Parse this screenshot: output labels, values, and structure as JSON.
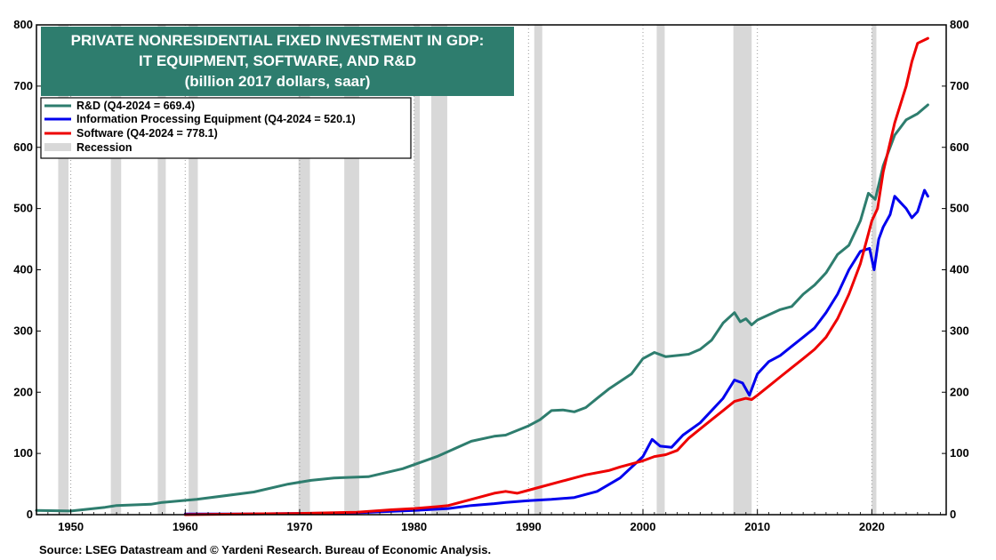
{
  "chart_data": {
    "type": "line",
    "title": [
      "PRIVATE NONRESIDENTIAL FIXED INVESTMENT IN GDP:",
      "IT EQUIPMENT, SOFTWARE, AND R&D",
      "(billion 2017 dollars, saar)"
    ],
    "xlim": [
      1947,
      2026.5
    ],
    "ylim": [
      0,
      800
    ],
    "x_ticks": [
      1950,
      1960,
      1970,
      1980,
      1990,
      2000,
      2010,
      2020
    ],
    "y_ticks": [
      0,
      100,
      200,
      300,
      400,
      500,
      600,
      700,
      800
    ],
    "grid": "vertical dotted at decades",
    "legend_position": "top-left",
    "recessions": [
      [
        1948.9,
        1949.8
      ],
      [
        1953.5,
        1954.4
      ],
      [
        1957.6,
        1958.3
      ],
      [
        1960.3,
        1961.1
      ],
      [
        1969.9,
        1970.9
      ],
      [
        1973.9,
        1975.2
      ],
      [
        1980.0,
        1980.5
      ],
      [
        1981.5,
        1982.9
      ],
      [
        1990.5,
        1991.2
      ],
      [
        2001.2,
        2001.9
      ],
      [
        2007.9,
        2009.5
      ],
      [
        2020.0,
        2020.4
      ]
    ],
    "series": [
      {
        "name": "R&D",
        "legend": "R&D  (Q4-2024 = 669.4)",
        "color": "#2e7d6e",
        "x": [
          1947,
          1950,
          1951,
          1953,
          1954,
          1957,
          1958,
          1961,
          1966,
          1969,
          1971,
          1973,
          1976,
          1979,
          1982,
          1985,
          1987,
          1988,
          1990,
          1991,
          1992,
          1993,
          1994,
          1995,
          1996,
          1997,
          1999,
          2000,
          2001,
          2002,
          2004,
          2005,
          2006,
          2007,
          2008,
          2008.5,
          2009,
          2009.5,
          2010,
          2012,
          2013,
          2014,
          2015,
          2015.5,
          2016,
          2017,
          2018,
          2019,
          2019.7,
          2020.3,
          2021,
          2022,
          2023,
          2024,
          2024.9
        ],
        "values": [
          7,
          6,
          8,
          12,
          15,
          17,
          20,
          25,
          37,
          50,
          56,
          60,
          62,
          75,
          95,
          120,
          128,
          130,
          145,
          155,
          170,
          171,
          168,
          175,
          190,
          205,
          230,
          255,
          265,
          258,
          262,
          270,
          285,
          313,
          330,
          315,
          320,
          310,
          318,
          335,
          340,
          360,
          375,
          385,
          395,
          425,
          440,
          480,
          525,
          515,
          570,
          620,
          645,
          655,
          669.4
        ]
      },
      {
        "name": "Information Processing Equipment",
        "legend": "Information Processing Equipment (Q4-2024 = 520.1)",
        "color": "#0000ee",
        "x": [
          1960,
          1965,
          1970,
          1975,
          1980,
          1983,
          1985,
          1987,
          1988,
          1990,
          1992,
          1994,
          1996,
          1998,
          2000,
          2000.8,
          2001.5,
          2002.5,
          2003.5,
          2005,
          2007,
          2008,
          2008.7,
          2009.3,
          2010,
          2011,
          2012,
          2013,
          2014,
          2015,
          2016,
          2017,
          2018,
          2019,
          2019.8,
          2020.2,
          2020.6,
          2021,
          2021.6,
          2022,
          2022.5,
          2023,
          2023.5,
          2024,
          2024.6,
          2024.9
        ],
        "values": [
          1,
          1,
          2,
          3,
          7,
          10,
          15,
          18,
          20,
          23,
          25,
          28,
          38,
          60,
          95,
          123,
          112,
          110,
          130,
          150,
          190,
          220,
          215,
          195,
          230,
          250,
          260,
          275,
          290,
          305,
          330,
          360,
          400,
          430,
          435,
          400,
          450,
          470,
          490,
          520,
          510,
          500,
          485,
          495,
          530,
          520.1
        ]
      },
      {
        "name": "Software",
        "legend": "Software (Q4-2024 = 778.1)",
        "color": "#ee0000",
        "x": [
          1960,
          1965,
          1970,
          1975,
          1978,
          1980,
          1982,
          1983,
          1985,
          1987,
          1988,
          1989,
          1990,
          1991,
          1993,
          1995,
          1997,
          1998,
          2000,
          2001,
          2002,
          2003,
          2004,
          2005,
          2006,
          2007,
          2008,
          2009,
          2009.5,
          2010,
          2011,
          2012,
          2013,
          2014,
          2015,
          2016,
          2017,
          2018,
          2019,
          2020,
          2020.5,
          2021,
          2022,
          2023,
          2023.5,
          2024,
          2024.9
        ],
        "values": [
          0,
          1,
          2,
          4,
          8,
          10,
          13,
          15,
          25,
          35,
          38,
          35,
          40,
          45,
          55,
          65,
          72,
          78,
          88,
          95,
          98,
          105,
          125,
          140,
          155,
          170,
          185,
          190,
          188,
          195,
          210,
          225,
          240,
          255,
          270,
          290,
          320,
          360,
          410,
          480,
          500,
          560,
          640,
          700,
          740,
          770,
          778.1
        ]
      }
    ],
    "legend_recession_label": "Recession",
    "source": "Source: LSEG Datastream and © Yardeni Research. Bureau of Economic Analysis.",
    "colors": {
      "title_bg": "#2e7d6e",
      "recession": "#d8d8d8"
    }
  }
}
